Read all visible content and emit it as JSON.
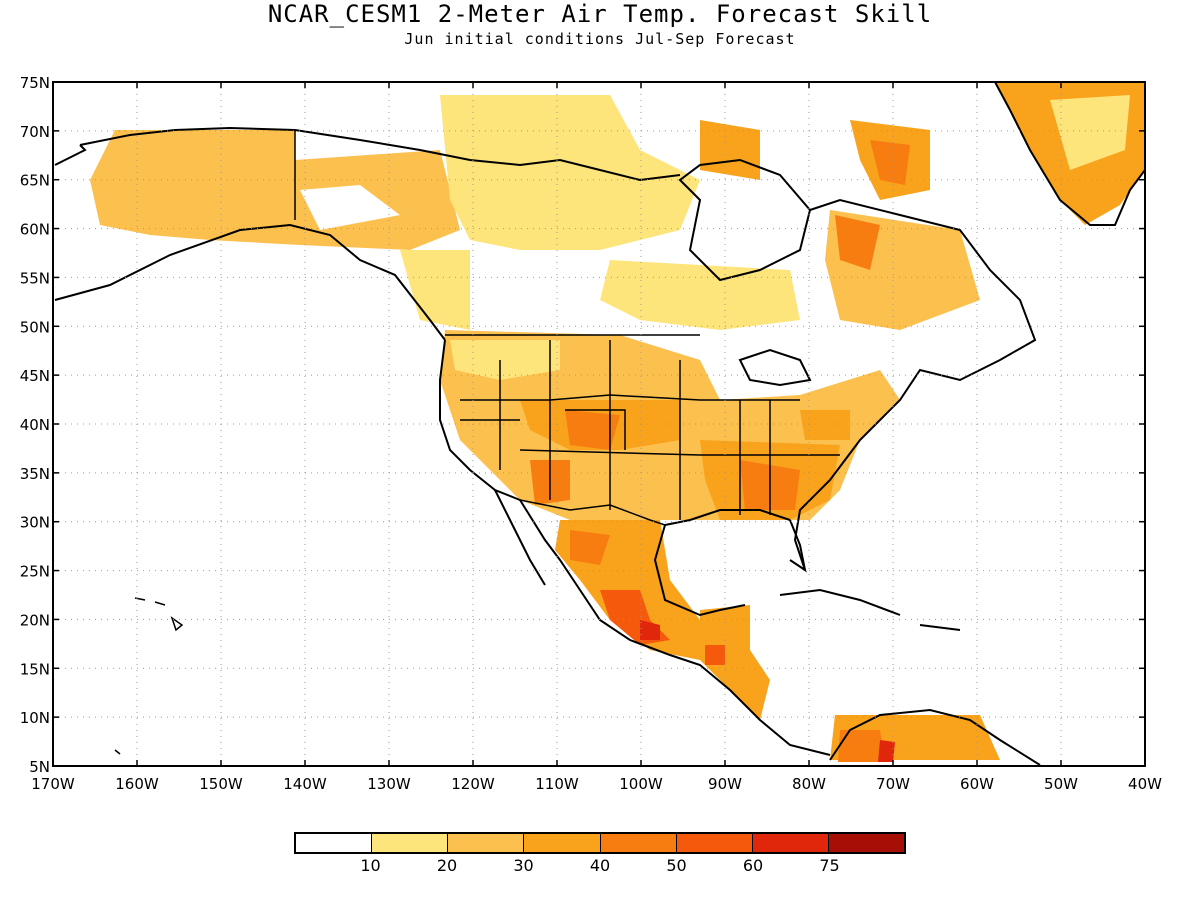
{
  "title": "NCAR_CESM1 2-Meter Air Temp. Forecast Skill",
  "subtitle": "Jun initial conditions   Jul-Sep Forecast",
  "map": {
    "lon_range": [
      -170,
      -40
    ],
    "lat_range": [
      5,
      75
    ],
    "lon_ticks": [
      "170W",
      "160W",
      "150W",
      "140W",
      "130W",
      "120W",
      "110W",
      "100W",
      "90W",
      "80W",
      "70W",
      "60W",
      "50W",
      "40W"
    ],
    "lat_ticks": [
      "75N",
      "70N",
      "65N",
      "60N",
      "55N",
      "50N",
      "45N",
      "40N",
      "35N",
      "30N",
      "25N",
      "20N",
      "15N",
      "10N",
      "5N"
    ],
    "gridlines": "dotted",
    "land_outline": "black coastlines and state borders"
  },
  "colorbar": {
    "colors": [
      "#ffffff",
      "#fde47b",
      "#fbc04e",
      "#f9a21c",
      "#f87d11",
      "#f55a0c",
      "#e0270b",
      "#a50f06"
    ],
    "labels": [
      "10",
      "20",
      "30",
      "40",
      "50",
      "60",
      "75"
    ]
  }
}
